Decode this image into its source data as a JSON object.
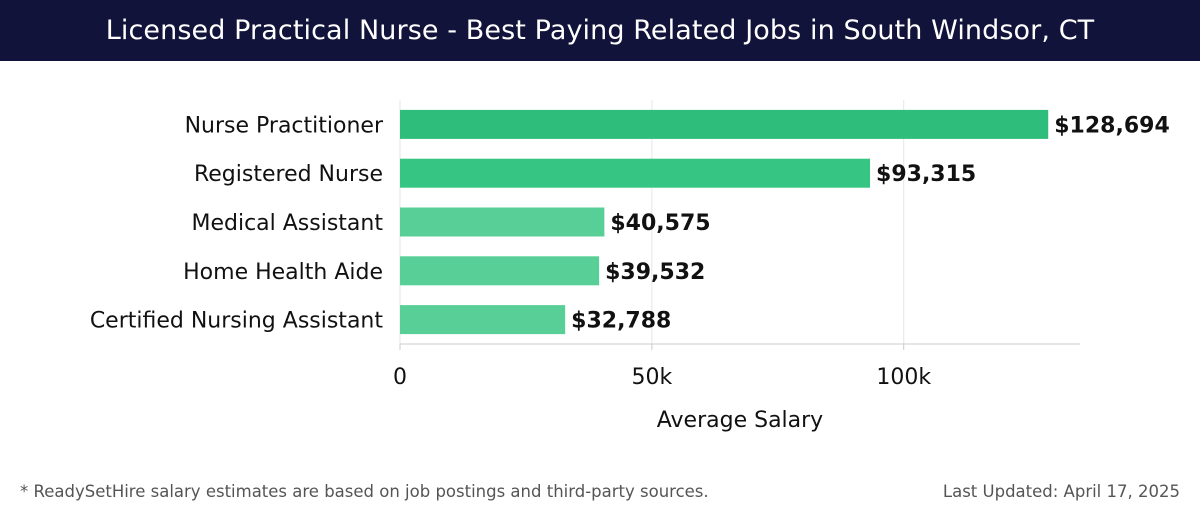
{
  "header": {
    "title": "Licensed Practical Nurse - Best Paying Related Jobs in South Windsor, CT"
  },
  "chart_data": {
    "type": "bar",
    "orientation": "horizontal",
    "categories": [
      "Nurse Practitioner",
      "Registered Nurse",
      "Medical Assistant",
      "Home Health Aide",
      "Certified Nursing Assistant"
    ],
    "values": [
      128694,
      93315,
      40575,
      39532,
      32788
    ],
    "value_labels": [
      "$128,694",
      "$93,315",
      "$40,575",
      "$39,532",
      "$32,788"
    ],
    "bar_colors": [
      "#2ebd7a",
      "#37c583",
      "#58cf97",
      "#58cf97",
      "#58cf97"
    ],
    "xlabel": "Average Salary",
    "ylabel": "",
    "xlim": [
      0,
      135000
    ],
    "xticks": [
      0,
      50000,
      100000
    ],
    "xtick_labels": [
      "0",
      "50k",
      "100k"
    ],
    "grid": "vertical"
  },
  "footer": {
    "note": "* ReadySetHire salary estimates are based on job postings and third-party sources.",
    "updated": "Last Updated: April 17, 2025"
  }
}
